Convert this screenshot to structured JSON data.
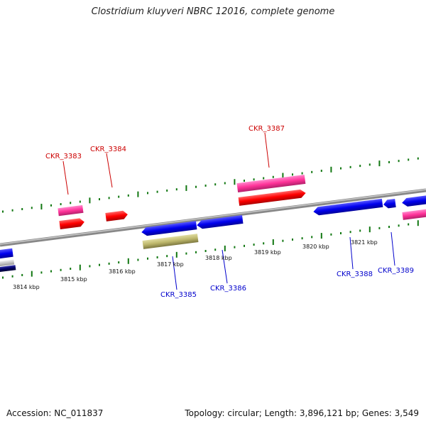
{
  "title": "Clostridium kluyveri NBRC 12016, complete genome",
  "footer": {
    "accession": "Accession: NC_011837",
    "info": "Topology: circular; Length: 3,896,121 bp; Genes: 3,549"
  },
  "colors": {
    "forward_label": "#cc0000",
    "reverse_label": "#0000cc",
    "forward_gene": "#ff0000",
    "forward_cds_pink": "#ff3399",
    "reverse_gene": "#0000ee",
    "reverse_dark": "#000066",
    "pseudo": "#bdb76b",
    "tick": "#117711",
    "backbone": "#888888"
  },
  "scale_labels": [
    {
      "text": "3814 kbp",
      "kbp": 3814
    },
    {
      "text": "3815 kbp",
      "kbp": 3815
    },
    {
      "text": "3816 kbp",
      "kbp": 3816
    },
    {
      "text": "3817 kbp",
      "kbp": 3817
    },
    {
      "text": "3818 kbp",
      "kbp": 3818
    },
    {
      "text": "3819 kbp",
      "kbp": 3819
    },
    {
      "text": "3820 kbp",
      "kbp": 3820
    },
    {
      "text": "3821 kbp",
      "kbp": 3821
    }
  ],
  "gene_labels": [
    {
      "text": "CKR_3383",
      "strand": "forward"
    },
    {
      "text": "CKR_3384",
      "strand": "forward"
    },
    {
      "text": "CKR_3387",
      "strand": "forward"
    },
    {
      "text": "CKR_3385",
      "strand": "reverse"
    },
    {
      "text": "CKR_3386",
      "strand": "reverse"
    },
    {
      "text": "CKR_3388",
      "strand": "reverse"
    },
    {
      "text": "CKR_3389",
      "strand": "reverse"
    }
  ]
}
